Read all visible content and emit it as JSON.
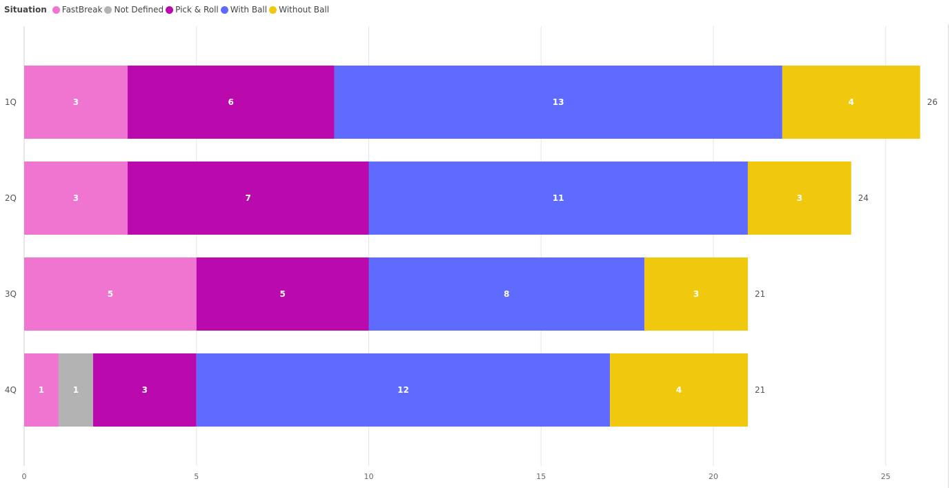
{
  "legend": {
    "title": "Situation",
    "items": [
      {
        "label": "FastBreak",
        "color": "#F075D0"
      },
      {
        "label": "Not Defined",
        "color": "#B3B3B3"
      },
      {
        "label": "Pick & Roll",
        "color": "#BA0AAE"
      },
      {
        "label": "With Ball",
        "color": "#5F6BFF"
      },
      {
        "label": "Without Ball",
        "color": "#F0C80E"
      }
    ]
  },
  "chart_data": {
    "type": "bar",
    "orientation": "horizontal",
    "stacked": true,
    "categories": [
      "1Q",
      "2Q",
      "3Q",
      "4Q"
    ],
    "series": [
      {
        "name": "FastBreak",
        "color": "#F075D0",
        "values": [
          3,
          3,
          5,
          1
        ]
      },
      {
        "name": "Not Defined",
        "color": "#B3B3B3",
        "values": [
          0,
          0,
          0,
          1
        ]
      },
      {
        "name": "Pick & Roll",
        "color": "#BA0AAE",
        "values": [
          6,
          7,
          5,
          3
        ]
      },
      {
        "name": "With Ball",
        "color": "#5F6BFF",
        "values": [
          13,
          11,
          8,
          12
        ]
      },
      {
        "name": "Without Ball",
        "color": "#F0C80E",
        "values": [
          4,
          3,
          3,
          4
        ]
      }
    ],
    "totals": [
      26,
      24,
      21,
      21
    ],
    "xticks": [
      0,
      5,
      10,
      15,
      20,
      25
    ],
    "xlim": [
      0,
      26.8
    ],
    "grid": true,
    "legend_position": "top-left"
  }
}
